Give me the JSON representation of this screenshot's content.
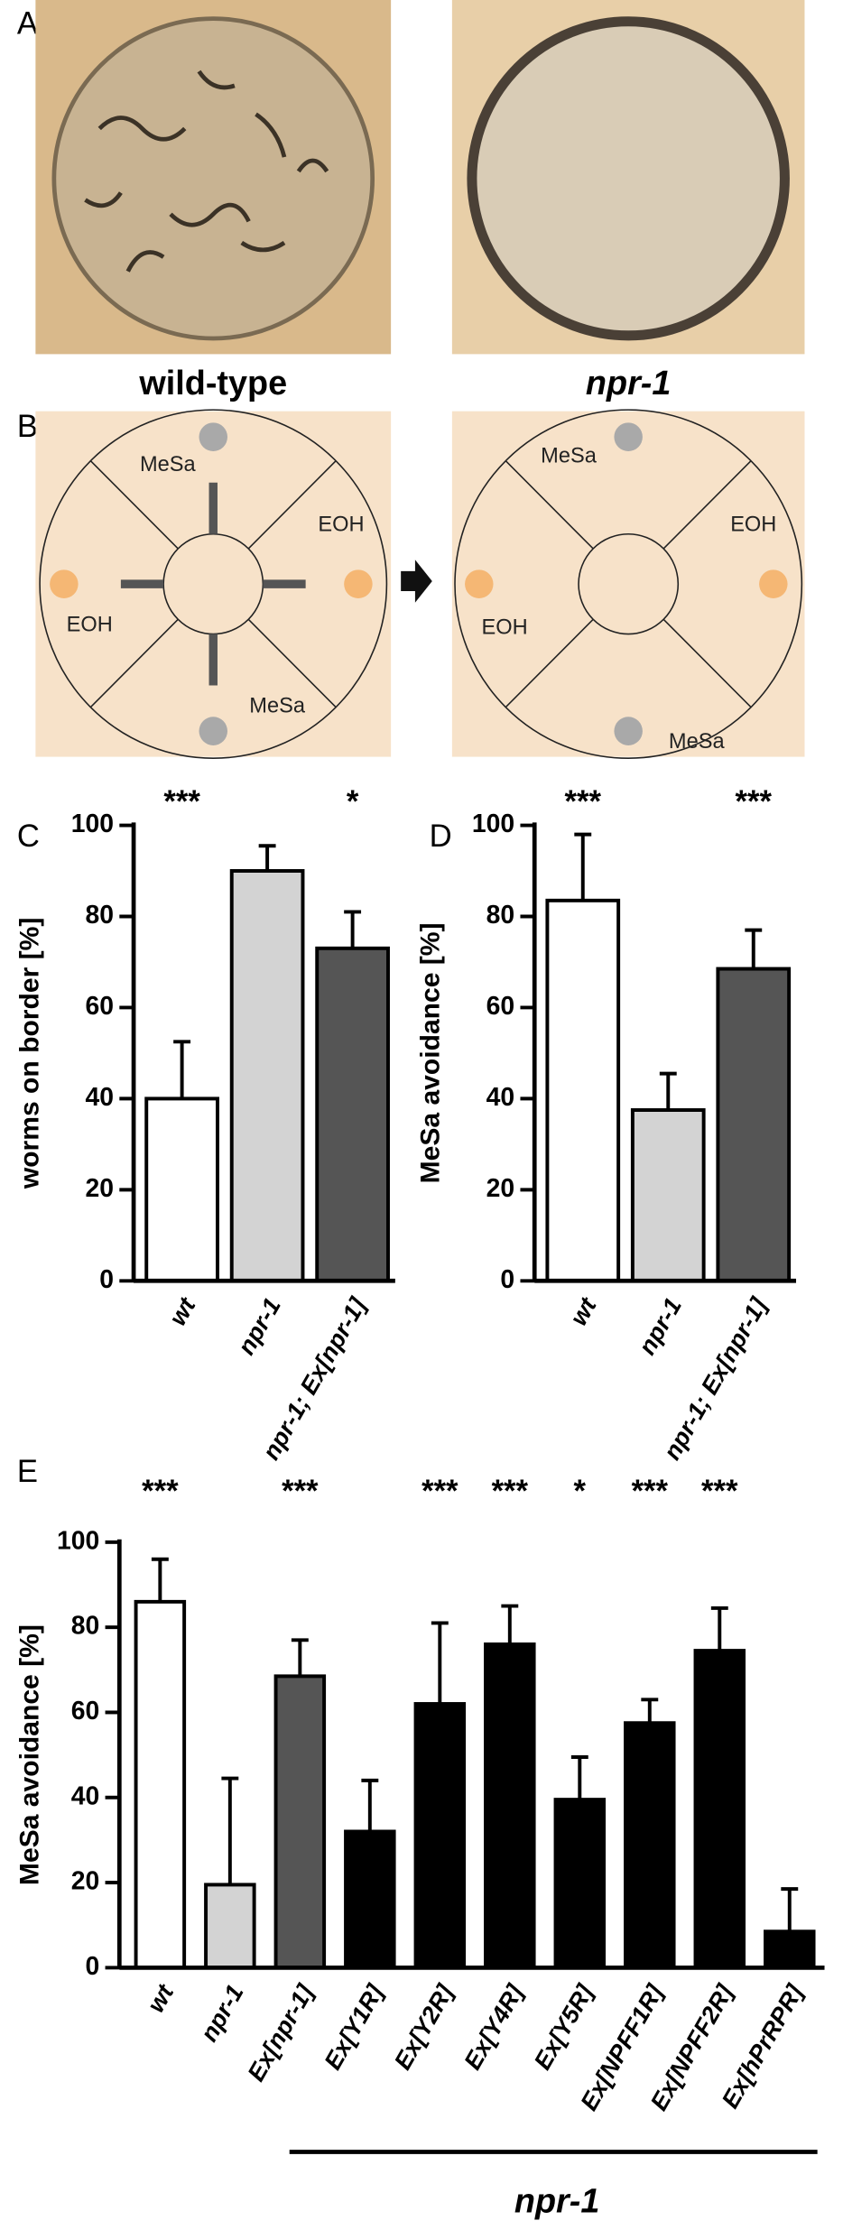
{
  "panel_labels": [
    "A",
    "B",
    "C",
    "D",
    "E"
  ],
  "panel_a": {
    "labels": [
      "wild-type",
      "npr-1"
    ]
  },
  "panel_b": {
    "left_labels": [
      "MeSa",
      "EOH",
      "EOH",
      "MeSa"
    ],
    "right_labels": [
      "MeSa",
      "EOH",
      "EOH",
      "MeSa"
    ]
  },
  "chart_data": [
    {
      "type": "bar",
      "y_label": "worms on border [%]",
      "categories": [
        "wt",
        "npr-1",
        "npr-1; Ex[npr-1]"
      ],
      "values": [
        40,
        90,
        73
      ],
      "errors": [
        12.5,
        5.5,
        8
      ],
      "significance": [
        "***",
        null,
        "*"
      ],
      "colors": [
        "#ffffff",
        "#d3d3d3",
        "#555555"
      ],
      "ylim": [
        0,
        100
      ],
      "yticks": [
        0,
        20,
        40,
        60,
        80,
        100
      ]
    },
    {
      "type": "bar",
      "y_label": "MeSa avoidance [%]",
      "categories": [
        "wt",
        "npr-1",
        "npr-1; Ex[npr-1]"
      ],
      "values": [
        83.5,
        37.5,
        68.5
      ],
      "errors": [
        14.5,
        8,
        8.5
      ],
      "significance": [
        "***",
        null,
        "***"
      ],
      "colors": [
        "#ffffff",
        "#d3d3d3",
        "#555555"
      ],
      "ylim": [
        0,
        100
      ],
      "yticks": [
        0,
        20,
        40,
        60,
        80,
        100
      ]
    },
    {
      "type": "bar",
      "y_label": "MeSa avoidance [%]",
      "categories": [
        "wt",
        "npr-1",
        "Ex[npr-1]",
        "Ex[Y1R]",
        "Ex[Y2R]",
        "Ex[Y4R]",
        "Ex[Y5R]",
        "Ex[NPFF1R]",
        "Ex[NPFF2R]",
        "Ex[hPrRPR]"
      ],
      "values": [
        86,
        19.5,
        68.5,
        32,
        62,
        76,
        39.5,
        57.5,
        74.5,
        8.5
      ],
      "errors": [
        10,
        25,
        8.5,
        12,
        19,
        9,
        10,
        5.5,
        10,
        10
      ],
      "significance": [
        "***",
        null,
        "***",
        null,
        "***",
        "***",
        "*",
        "***",
        "***",
        null
      ],
      "colors": [
        "#ffffff",
        "#d3d3d3",
        "#555555",
        "#000000",
        "#000000",
        "#000000",
        "#000000",
        "#000000",
        "#000000",
        "#000000"
      ],
      "group_label": "npr-1",
      "ylim": [
        0,
        100
      ],
      "yticks": [
        0,
        20,
        40,
        60,
        80,
        100
      ]
    }
  ]
}
